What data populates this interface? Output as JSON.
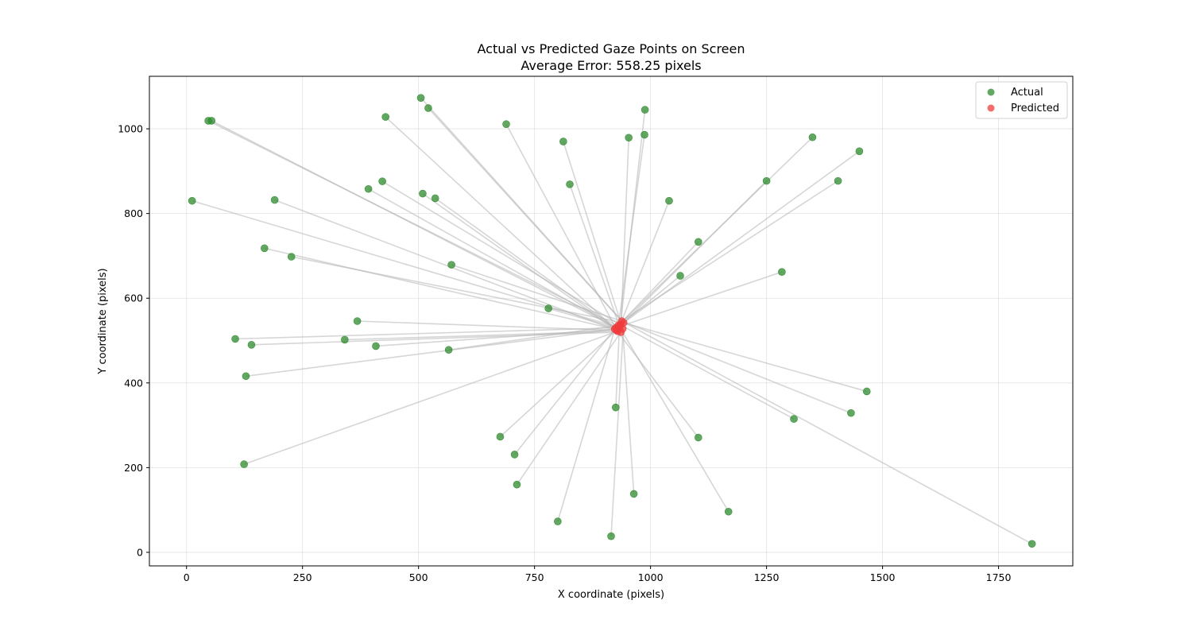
{
  "chart_data": {
    "type": "scatter",
    "title": "Actual vs Predicted Gaze Points on Screen",
    "subtitle": "Average Error: 558.25 pixels",
    "xlabel": "X coordinate (pixels)",
    "ylabel": "Y coordinate (pixels)",
    "xlim": [
      -80,
      1910
    ],
    "ylim": [
      -32,
      1124
    ],
    "xticks": [
      0,
      250,
      500,
      750,
      1000,
      1250,
      1500,
      1750
    ],
    "yticks": [
      0,
      200,
      400,
      600,
      800,
      1000
    ],
    "grid": true,
    "legend_position": "top-right",
    "colors": {
      "actual": "#2e8b2e",
      "predicted": "#f03c3c",
      "connector": "#b4b4b4"
    },
    "series": [
      {
        "name": "Actual",
        "points": [
          [
            505,
            1073
          ],
          [
            521,
            1049
          ],
          [
            988,
            1045
          ],
          [
            47,
            1019
          ],
          [
            54,
            1019
          ],
          [
            429,
            1028
          ],
          [
            689,
            1011
          ],
          [
            987,
            986
          ],
          [
            953,
            979
          ],
          [
            812,
            970
          ],
          [
            1349,
            980
          ],
          [
            1450,
            947
          ],
          [
            1250,
            877
          ],
          [
            1404,
            877
          ],
          [
            422,
            876
          ],
          [
            826,
            869
          ],
          [
            392,
            858
          ],
          [
            509,
            847
          ],
          [
            536,
            836
          ],
          [
            1040,
            830
          ],
          [
            190,
            832
          ],
          [
            12,
            830
          ],
          [
            1103,
            733
          ],
          [
            168,
            718
          ],
          [
            226,
            698
          ],
          [
            571,
            679
          ],
          [
            1064,
            653
          ],
          [
            1283,
            662
          ],
          [
            780,
            576
          ],
          [
            368,
            546
          ],
          [
            105,
            504
          ],
          [
            341,
            502
          ],
          [
            140,
            490
          ],
          [
            408,
            487
          ],
          [
            565,
            478
          ],
          [
            128,
            416
          ],
          [
            1466,
            380
          ],
          [
            1432,
            329
          ],
          [
            1309,
            315
          ],
          [
            925,
            342
          ],
          [
            676,
            273
          ],
          [
            1103,
            271
          ],
          [
            707,
            231
          ],
          [
            124,
            208
          ],
          [
            712,
            160
          ],
          [
            964,
            138
          ],
          [
            1168,
            96
          ],
          [
            800,
            73
          ],
          [
            915,
            38
          ],
          [
            1822,
            20
          ]
        ]
      },
      {
        "name": "Predicted",
        "points": [
          [
            942,
            542
          ],
          [
            938,
            546
          ],
          [
            935,
            537
          ],
          [
            933,
            533
          ],
          [
            930,
            528
          ],
          [
            927,
            524
          ],
          [
            925,
            530
          ],
          [
            929,
            522
          ],
          [
            936,
            520
          ],
          [
            940,
            528
          ],
          [
            931,
            536
          ],
          [
            923,
            527
          ]
        ]
      }
    ]
  }
}
